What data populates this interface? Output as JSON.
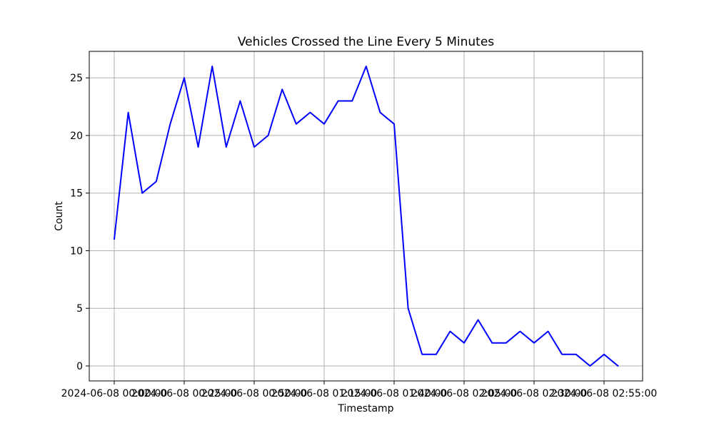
{
  "chart_data": {
    "type": "line",
    "title": "Vehicles Crossed the Line Every 5 Minutes",
    "xlabel": "Timestamp",
    "ylabel": "Count",
    "grid": true,
    "ylim": [
      -1.3,
      27.3
    ],
    "yticks": [
      0,
      5,
      10,
      15,
      20,
      25
    ],
    "x_start": "2024-06-08 00:00:00",
    "x_interval_minutes": 5,
    "xticks": [
      "2024-06-08 00:00:00",
      "2024-06-08 00:25:00",
      "2024-06-08 00:50:00",
      "2024-06-08 01:15:00",
      "2024-06-08 01:40:00",
      "2024-06-08 02:05:00",
      "2024-06-08 02:30:00",
      "2024-06-08 02:55:00"
    ],
    "series": [
      {
        "color": "#0000ff",
        "values": [
          11,
          22,
          15,
          16,
          21,
          25,
          19,
          26,
          19,
          23,
          19,
          20,
          24,
          21,
          22,
          21,
          23,
          23,
          26,
          22,
          21,
          5,
          1,
          1,
          3,
          2,
          4,
          2,
          2,
          3,
          2,
          3,
          1,
          1,
          0,
          1,
          0
        ]
      }
    ]
  }
}
